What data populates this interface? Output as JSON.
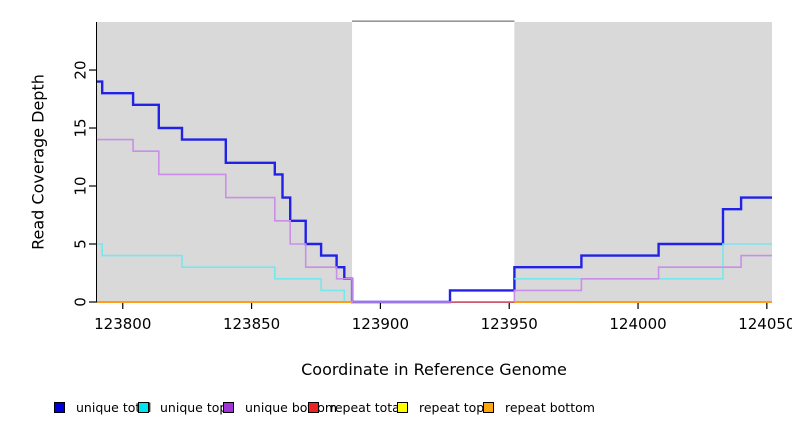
{
  "figure": {
    "ylabel": "Read Coverage Depth",
    "xlabel": "Coordinate in Reference Genome"
  },
  "legend": {
    "items": [
      {
        "label": "unique total",
        "color": "#0000DD"
      },
      {
        "label": "unique top",
        "color": "#00E6F0"
      },
      {
        "label": "unique bottom",
        "color": "#A233D9"
      },
      {
        "label": "repeat total",
        "color": "#EE2222"
      },
      {
        "label": "repeat top",
        "color": "#FFFF00"
      },
      {
        "label": "repeat bottom",
        "color": "#FFA510"
      }
    ]
  },
  "chart_data": {
    "type": "line",
    "subtype": "step",
    "title": "",
    "xlabel": "Coordinate in Reference Genome",
    "ylabel": "Read Coverage Depth",
    "xlim": [
      123790,
      124052
    ],
    "ylim": [
      0,
      24.14
    ],
    "x_ticks": [
      123800,
      123850,
      123900,
      123950,
      124000,
      124050
    ],
    "y_ticks": [
      0,
      5,
      10,
      15,
      20
    ],
    "grid": false,
    "legend_position": "bottom",
    "colors": {
      "shading_gray": "#D9D9D9",
      "gap_top_border": "#979797",
      "axis": "#000000"
    },
    "background_shading": {
      "covered_regions_gray": [
        [
          123790,
          123889
        ],
        [
          123952,
          124052
        ]
      ],
      "uncovered_region_white": [
        123889,
        123952
      ]
    },
    "series": [
      {
        "name": "unique total",
        "line_color": "#2222E6",
        "swatch_color": "#0000DD",
        "line_width": 2.4,
        "x_end": 124052,
        "steps": [
          [
            123790,
            19
          ],
          [
            123792,
            18
          ],
          [
            123804,
            17
          ],
          [
            123814,
            15
          ],
          [
            123823,
            14
          ],
          [
            123840,
            12
          ],
          [
            123859,
            11
          ],
          [
            123862,
            9
          ],
          [
            123865,
            7
          ],
          [
            123871,
            5
          ],
          [
            123877,
            4
          ],
          [
            123883,
            3
          ],
          [
            123886,
            2
          ],
          [
            123889,
            0
          ],
          [
            123927,
            1
          ],
          [
            123952,
            3
          ],
          [
            123978,
            4
          ],
          [
            124008,
            5
          ],
          [
            124033,
            8
          ],
          [
            124040,
            9
          ]
        ]
      },
      {
        "name": "unique top",
        "line_color": "#78E7EC",
        "swatch_color": "#00E6F0",
        "line_width": 1.6,
        "x_end": 124052,
        "steps": [
          [
            123790,
            5
          ],
          [
            123792,
            4
          ],
          [
            123823,
            3
          ],
          [
            123859,
            2
          ],
          [
            123877,
            1
          ],
          [
            123886,
            0
          ],
          [
            123889,
            null
          ],
          [
            123952,
            2
          ],
          [
            124033,
            5
          ]
        ]
      },
      {
        "name": "unique bottom",
        "line_color": "#C98FE8",
        "swatch_color": "#A233D9",
        "line_width": 1.6,
        "x_end": 124052,
        "steps": [
          [
            123790,
            14
          ],
          [
            123804,
            13
          ],
          [
            123814,
            11
          ],
          [
            123840,
            9
          ],
          [
            123859,
            7
          ],
          [
            123865,
            5
          ],
          [
            123871,
            3
          ],
          [
            123883,
            2
          ],
          [
            123889,
            0
          ],
          [
            123952,
            1
          ],
          [
            123978,
            2
          ],
          [
            124008,
            3
          ],
          [
            124040,
            4
          ]
        ]
      },
      {
        "name": "repeat total",
        "line_color": "#ED5F6F",
        "swatch_color": "#EE2222",
        "line_width": 1.6,
        "x_end": 123952,
        "steps": [
          [
            123790,
            null
          ],
          [
            123927,
            0
          ]
        ]
      },
      {
        "name": "repeat top",
        "line_color": "#FFFF00",
        "swatch_color": "#FFFF00",
        "line_width": 1.6,
        "x_end": 124052,
        "steps": [
          [
            123790,
            0
          ],
          [
            123889,
            null
          ],
          [
            123952,
            0
          ]
        ]
      },
      {
        "name": "repeat bottom",
        "line_color": "#FF9D19",
        "swatch_color": "#FFA510",
        "line_width": 2,
        "x_end": 124052,
        "steps": [
          [
            123790,
            0
          ],
          [
            123889,
            null
          ],
          [
            123952,
            0
          ]
        ]
      }
    ]
  }
}
